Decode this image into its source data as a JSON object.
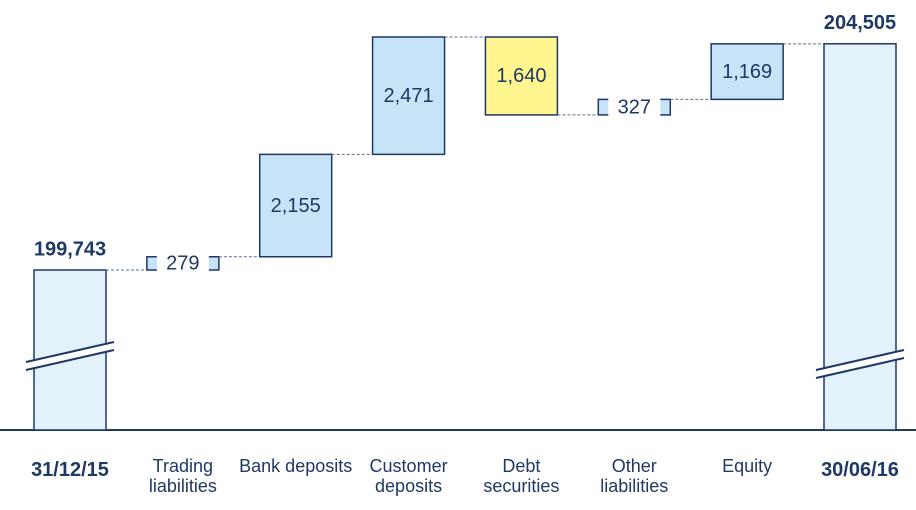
{
  "chart_data": {
    "type": "waterfall",
    "categories": [
      "31/12/15",
      "Trading liabilities",
      "Bank deposits",
      "Customer deposits",
      "Debt securities",
      "Other liabilities",
      "Equity",
      "30/06/16"
    ],
    "values": [
      199743,
      279,
      2155,
      2471,
      -1640,
      327,
      1169,
      204505
    ],
    "value_labels": [
      "199,743",
      "279",
      "2,155",
      "2,471",
      "1,640",
      "327",
      "1,169",
      "204,505"
    ],
    "colors": [
      "#e3f1fb",
      "#c6e3f7",
      "#c6e3f7",
      "#c6e3f7",
      "#fff68f",
      "#c6e3f7",
      "#c6e3f7",
      "#e3f1fb"
    ]
  }
}
